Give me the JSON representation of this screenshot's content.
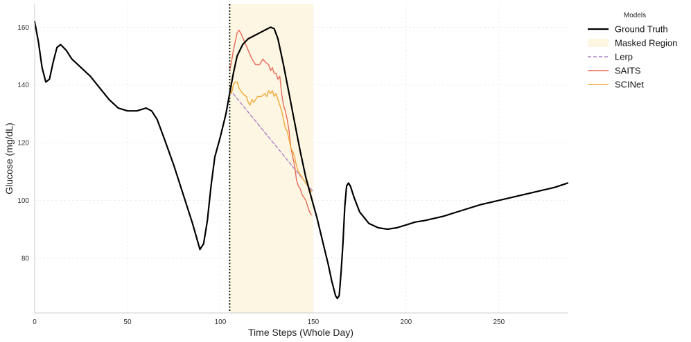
{
  "chart_data": {
    "type": "line",
    "xlabel": "Time Steps (Whole Day)",
    "ylabel": "Glucose (mg/dL)",
    "xlim": [
      0,
      287
    ],
    "ylim": [
      61,
      168
    ],
    "x_ticks": [
      0,
      50,
      100,
      150,
      200,
      250
    ],
    "y_ticks": [
      80,
      100,
      120,
      140,
      160
    ],
    "grid": true,
    "masked_region": {
      "label": "Masked Region",
      "start": 105,
      "end": 150,
      "color": "#fdf6e2"
    },
    "mask_start_marker": 105,
    "legend": {
      "title": "Models",
      "placement": "outside-right"
    },
    "series": [
      {
        "name": "Ground Truth",
        "color": "#000000",
        "style": "solid",
        "points": [
          [
            0,
            162
          ],
          [
            2,
            155
          ],
          [
            4,
            146
          ],
          [
            6,
            141
          ],
          [
            8,
            142
          ],
          [
            10,
            148
          ],
          [
            12,
            153
          ],
          [
            14,
            154
          ],
          [
            17,
            152
          ],
          [
            20,
            149
          ],
          [
            25,
            146
          ],
          [
            30,
            143
          ],
          [
            35,
            139
          ],
          [
            40,
            135
          ],
          [
            45,
            132
          ],
          [
            50,
            131
          ],
          [
            55,
            131
          ],
          [
            60,
            132
          ],
          [
            63,
            131
          ],
          [
            66,
            128
          ],
          [
            70,
            121
          ],
          [
            75,
            112
          ],
          [
            80,
            102
          ],
          [
            85,
            92
          ],
          [
            89,
            83
          ],
          [
            91,
            85
          ],
          [
            93,
            93
          ],
          [
            95,
            105
          ],
          [
            97,
            115
          ],
          [
            100,
            122
          ],
          [
            103,
            130
          ],
          [
            105,
            137
          ],
          [
            107,
            144
          ],
          [
            109,
            150
          ],
          [
            112,
            154
          ],
          [
            115,
            156
          ],
          [
            118,
            157
          ],
          [
            121,
            158
          ],
          [
            124,
            159
          ],
          [
            127,
            160
          ],
          [
            129,
            159.5
          ],
          [
            131,
            156
          ],
          [
            134,
            147
          ],
          [
            137,
            137
          ],
          [
            140,
            127
          ],
          [
            143,
            117
          ],
          [
            146,
            108
          ],
          [
            149,
            101
          ],
          [
            152,
            94
          ],
          [
            155,
            86
          ],
          [
            158,
            78
          ],
          [
            160,
            72
          ],
          [
            162,
            67
          ],
          [
            163,
            66
          ],
          [
            164,
            67
          ],
          [
            165,
            75
          ],
          [
            166,
            85
          ],
          [
            167,
            98
          ],
          [
            168,
            105
          ],
          [
            169,
            106
          ],
          [
            170,
            105
          ],
          [
            172,
            101
          ],
          [
            175,
            96
          ],
          [
            180,
            92
          ],
          [
            185,
            90.5
          ],
          [
            190,
            90
          ],
          [
            195,
            90.5
          ],
          [
            200,
            91.5
          ],
          [
            205,
            92.5
          ],
          [
            210,
            93
          ],
          [
            220,
            94.5
          ],
          [
            230,
            96.5
          ],
          [
            240,
            98.5
          ],
          [
            250,
            100
          ],
          [
            260,
            101.5
          ],
          [
            270,
            103
          ],
          [
            280,
            104.5
          ],
          [
            287,
            106
          ]
        ]
      },
      {
        "name": "Lerp",
        "color": "#b182c9",
        "style": "dashed",
        "points": [
          [
            105,
            138.5
          ],
          [
            150,
            103
          ]
        ]
      },
      {
        "name": "SAITS",
        "color": "#e8695a",
        "style": "solid",
        "points": [
          [
            105,
            145
          ],
          [
            106,
            148
          ],
          [
            107,
            152
          ],
          [
            108,
            155
          ],
          [
            109,
            158
          ],
          [
            110,
            159
          ],
          [
            111,
            158
          ],
          [
            113,
            155
          ],
          [
            115,
            152
          ],
          [
            117,
            149
          ],
          [
            119,
            147
          ],
          [
            121,
            147
          ],
          [
            122,
            148
          ],
          [
            123,
            149
          ],
          [
            124,
            148
          ],
          [
            126,
            147
          ],
          [
            127,
            145
          ],
          [
            128,
            146
          ],
          [
            129,
            144
          ],
          [
            130,
            144
          ],
          [
            131,
            142
          ],
          [
            132,
            143
          ],
          [
            133,
            137
          ],
          [
            134,
            133
          ],
          [
            135,
            131
          ],
          [
            136,
            128
          ],
          [
            137,
            124
          ],
          [
            138,
            118
          ],
          [
            140,
            112
          ],
          [
            141,
            107
          ],
          [
            142,
            105
          ],
          [
            143,
            104
          ],
          [
            144,
            102
          ],
          [
            145,
            101
          ],
          [
            146,
            100
          ],
          [
            147,
            98
          ],
          [
            148,
            96
          ],
          [
            149,
            95
          ]
        ]
      },
      {
        "name": "SCINet",
        "color": "#f2a838",
        "style": "solid",
        "points": [
          [
            105,
            139
          ],
          [
            106,
            137
          ],
          [
            107,
            140
          ],
          [
            108,
            141
          ],
          [
            109,
            141
          ],
          [
            110,
            139
          ],
          [
            111,
            138
          ],
          [
            112,
            137
          ],
          [
            114,
            136
          ],
          [
            115,
            134
          ],
          [
            116,
            133
          ],
          [
            117,
            135
          ],
          [
            118,
            134
          ],
          [
            119,
            135
          ],
          [
            120,
            136
          ],
          [
            122,
            136
          ],
          [
            124,
            137
          ],
          [
            125,
            136
          ],
          [
            126,
            138
          ],
          [
            127,
            137
          ],
          [
            128,
            138
          ],
          [
            129,
            136
          ],
          [
            130,
            137
          ],
          [
            131,
            135
          ],
          [
            132,
            133
          ],
          [
            133,
            131
          ],
          [
            134,
            128
          ],
          [
            135,
            125
          ],
          [
            136,
            124
          ],
          [
            137,
            121
          ],
          [
            138,
            118
          ],
          [
            139,
            117
          ],
          [
            140,
            115
          ],
          [
            141,
            112
          ],
          [
            142,
            110
          ],
          [
            143,
            109
          ],
          [
            144,
            108
          ],
          [
            145,
            107
          ],
          [
            146,
            106
          ],
          [
            147,
            105
          ],
          [
            148,
            104
          ],
          [
            149,
            103
          ]
        ]
      }
    ]
  }
}
